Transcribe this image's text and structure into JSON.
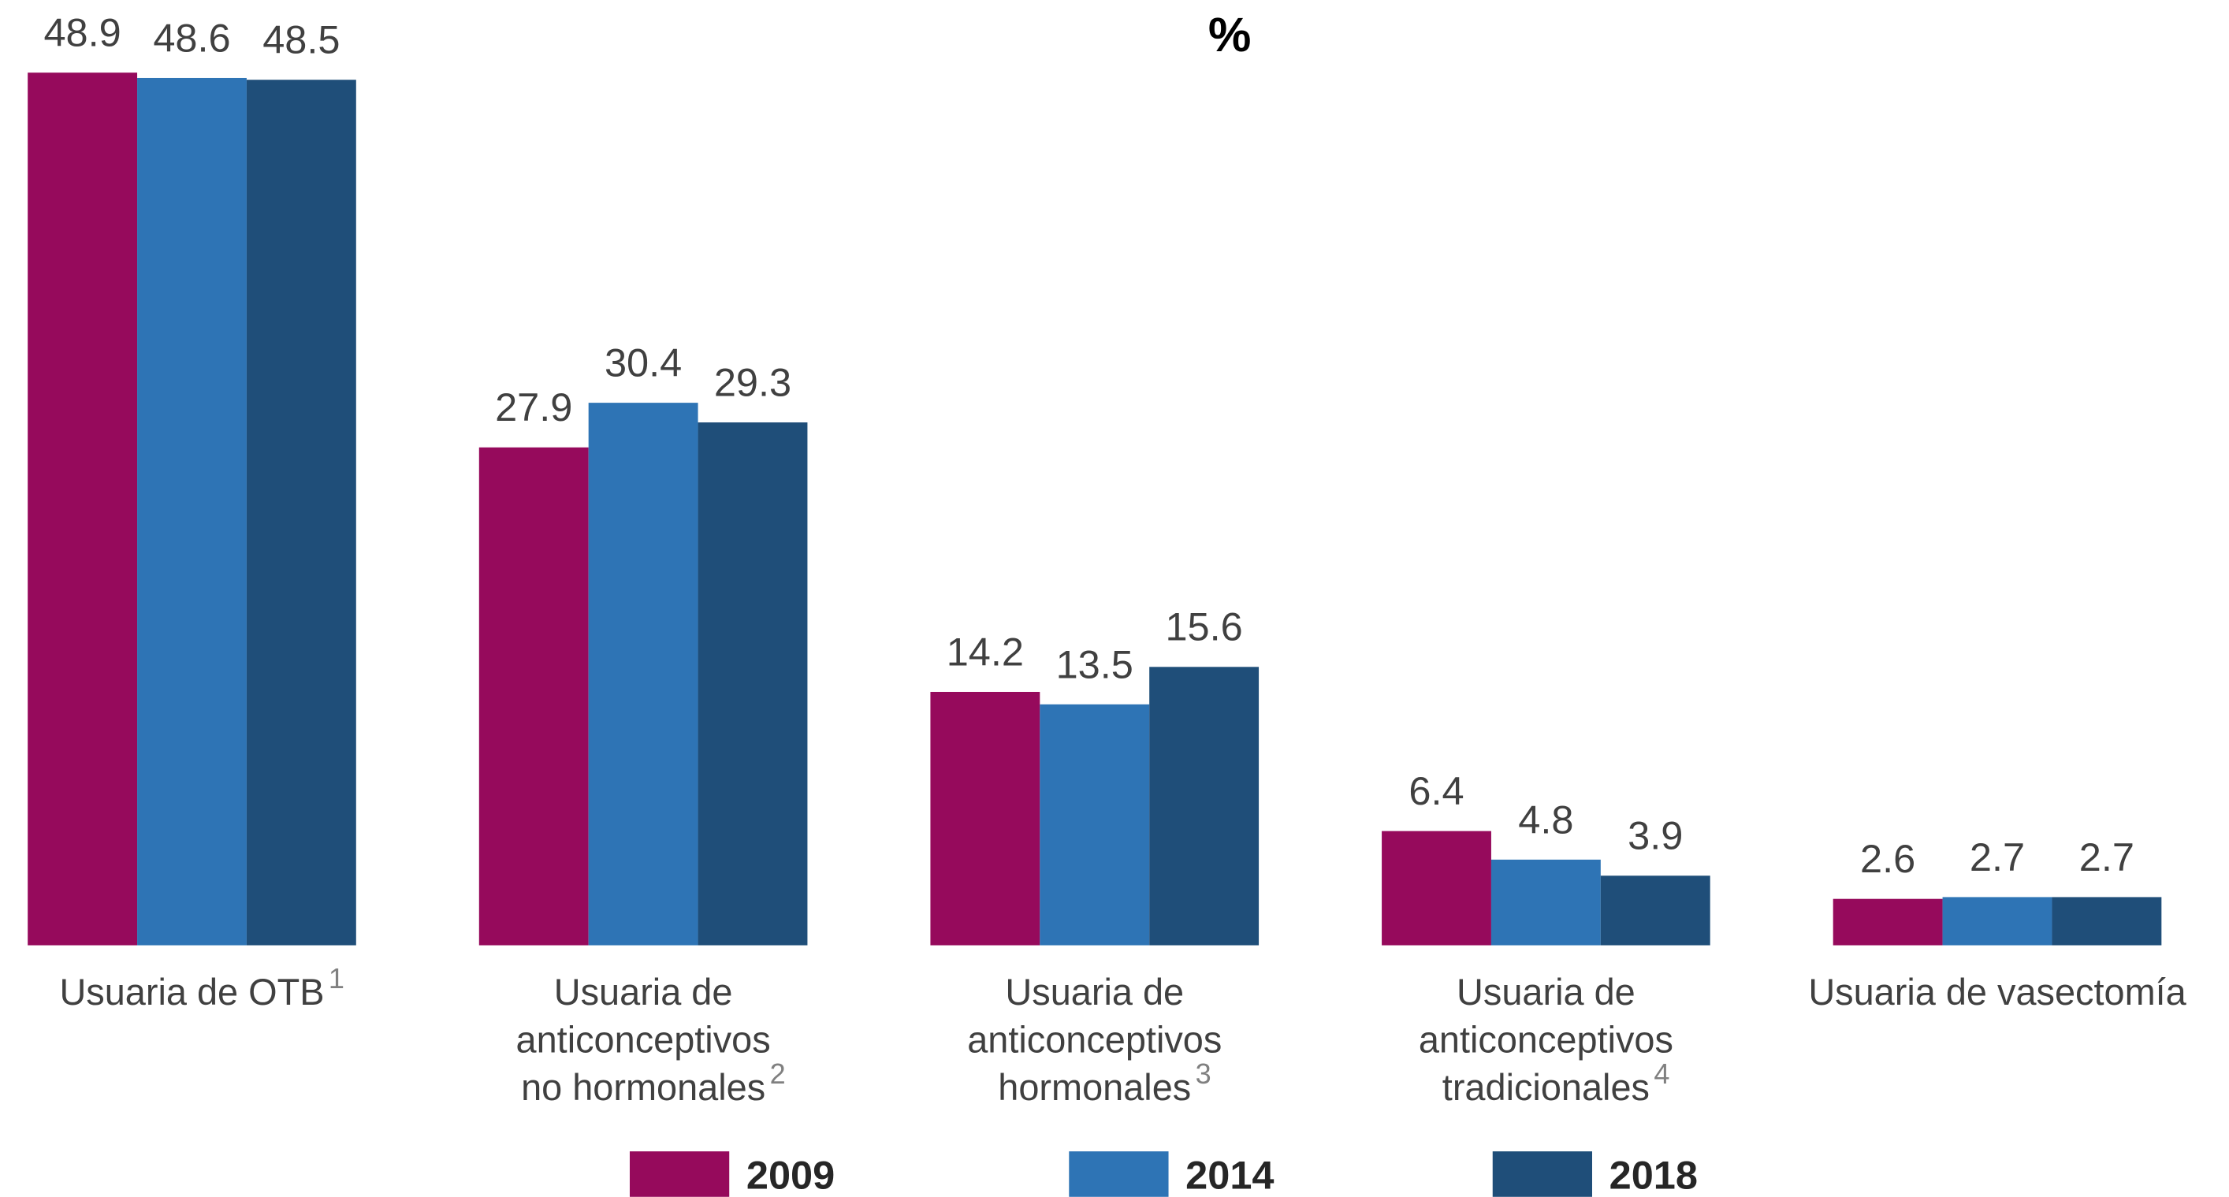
{
  "chart_data": {
    "type": "bar",
    "title": "%",
    "categories": [
      [
        "Usuaria de OTB"
      ],
      [
        "Usuaria de",
        "anticonceptivos",
        "no hormonales"
      ],
      [
        "Usuaria de",
        "anticonceptivos",
        "hormonales"
      ],
      [
        "Usuaria de",
        "anticonceptivos",
        "tradicionales"
      ],
      [
        "Usuaria de vasectomía"
      ]
    ],
    "category_notes": [
      "1",
      "2",
      "3",
      "4",
      null
    ],
    "series": [
      {
        "name": "2009",
        "color": "#960a5c",
        "values": [
          48.9,
          27.9,
          14.2,
          6.4,
          2.6
        ]
      },
      {
        "name": "2014",
        "color": "#2e74b5",
        "values": [
          48.6,
          30.4,
          13.5,
          4.8,
          2.7
        ]
      },
      {
        "name": "2018",
        "color": "#1f4e79",
        "values": [
          48.5,
          29.3,
          15.6,
          3.9,
          2.7
        ]
      }
    ],
    "legend": "bottom"
  }
}
